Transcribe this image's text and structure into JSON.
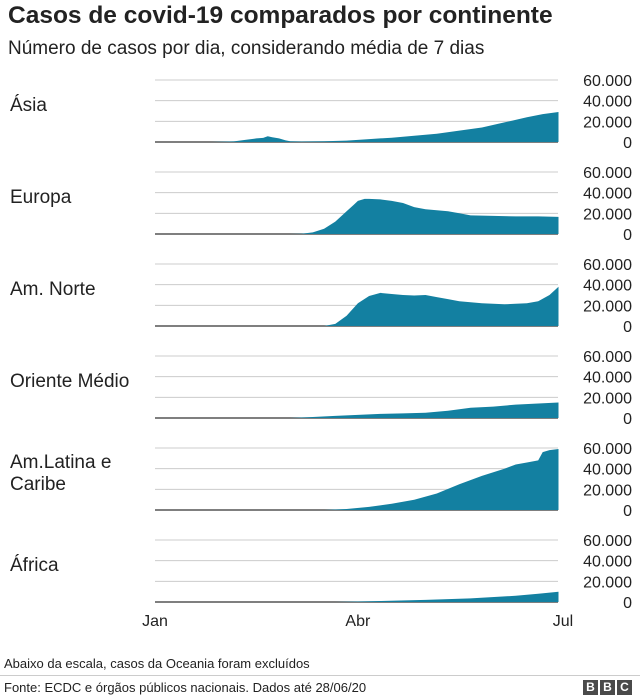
{
  "header": {
    "title": "Casos de covid-19 comparados por continente",
    "subtitle": "Número de casos por dia, considerando média de 7 dias"
  },
  "footer": {
    "note": "Abaixo da escala, casos da Oceania foram excluídos",
    "source": "Fonte: ECDC e órgãos públicos nacionais. Dados até 28/06/20",
    "logo_letters": [
      "B",
      "B",
      "C"
    ]
  },
  "colors": {
    "area": "#1380A1",
    "gridline": "#cccccc",
    "axis": "#333333"
  },
  "chart_data": {
    "type": "area",
    "x_ticks": [
      {
        "label": "Jan",
        "day": 0
      },
      {
        "label": "Abr",
        "day": 90
      },
      {
        "label": "Jul",
        "day": 181
      }
    ],
    "x_range_days": [
      0,
      179
    ],
    "y_ticks": [
      "60.000",
      "40.000",
      "20.000",
      "0"
    ],
    "ylim": [
      0,
      60000
    ],
    "panels": [
      {
        "name": "Ásia",
        "label_lines": [
          "Ásia"
        ],
        "days": [
          0,
          25,
          35,
          40,
          45,
          48,
          50,
          52,
          55,
          58,
          60,
          65,
          75,
          85,
          95,
          105,
          115,
          125,
          135,
          145,
          155,
          165,
          172,
          179
        ],
        "values": [
          0,
          0,
          600,
          2000,
          3500,
          4000,
          5500,
          4500,
          3500,
          1500,
          800,
          500,
          700,
          1400,
          2800,
          4200,
          6000,
          8000,
          11000,
          14000,
          19000,
          24000,
          27000,
          29000
        ]
      },
      {
        "name": "Europa",
        "label_lines": [
          "Europa"
        ],
        "days": [
          0,
          60,
          65,
          70,
          75,
          80,
          85,
          88,
          90,
          93,
          95,
          100,
          105,
          110,
          115,
          120,
          125,
          130,
          135,
          140,
          150,
          160,
          170,
          179
        ],
        "values": [
          0,
          0,
          200,
          1500,
          5000,
          12000,
          22000,
          28000,
          32000,
          34000,
          34000,
          33500,
          32000,
          30000,
          26000,
          24000,
          23000,
          22000,
          20000,
          18000,
          17500,
          17000,
          17000,
          16500
        ]
      },
      {
        "name": "Am. Norte",
        "label_lines": [
          "Am. Norte"
        ],
        "days": [
          0,
          75,
          80,
          85,
          90,
          95,
          100,
          105,
          110,
          115,
          120,
          125,
          130,
          135,
          140,
          145,
          150,
          155,
          160,
          165,
          170,
          175,
          179
        ],
        "values": [
          0,
          0,
          2000,
          10000,
          22000,
          29000,
          32000,
          31000,
          30000,
          29500,
          30000,
          28000,
          26000,
          24000,
          23000,
          22000,
          21500,
          21000,
          21500,
          22000,
          24000,
          30000,
          38000
        ]
      },
      {
        "name": "Oriente Médio",
        "label_lines": [
          "Oriente Médio"
        ],
        "days": [
          0,
          60,
          70,
          80,
          90,
          100,
          110,
          120,
          130,
          140,
          150,
          160,
          170,
          179
        ],
        "values": [
          0,
          0,
          1000,
          2000,
          3000,
          4000,
          4500,
          5000,
          7000,
          10000,
          11000,
          13000,
          14000,
          15000
        ]
      },
      {
        "name": "Am.Latina e Caribe",
        "label_lines": [
          "Am.Latina e",
          "Caribe"
        ],
        "days": [
          0,
          75,
          85,
          95,
          105,
          115,
          125,
          135,
          145,
          155,
          160,
          165,
          170,
          172,
          175,
          179
        ],
        "values": [
          0,
          0,
          1000,
          3000,
          6000,
          10000,
          16000,
          25000,
          33000,
          40000,
          44000,
          46000,
          48000,
          56000,
          58000,
          59000
        ]
      },
      {
        "name": "África",
        "label_lines": [
          "África"
        ],
        "days": [
          0,
          80,
          100,
          120,
          140,
          160,
          170,
          179
        ],
        "values": [
          0,
          0,
          1000,
          2000,
          3500,
          6000,
          8000,
          10000
        ]
      }
    ]
  }
}
